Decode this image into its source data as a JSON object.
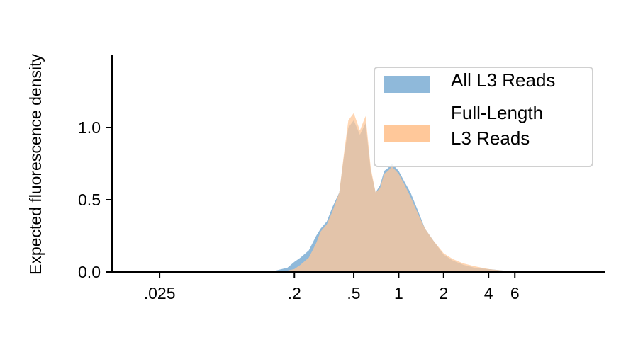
{
  "chart_data": {
    "type": "area",
    "title": "",
    "xlabel": "",
    "ylabel": "Expected fluorescence density",
    "x_scale": "log",
    "xlim": [
      0.012,
      24
    ],
    "ylim": [
      0,
      1.5
    ],
    "x_ticks": [
      {
        "value": 0.025,
        "label": ".025"
      },
      {
        "value": 0.2,
        "label": ".2"
      },
      {
        "value": 0.5,
        "label": ".5"
      },
      {
        "value": 1,
        "label": "1"
      },
      {
        "value": 2,
        "label": "2"
      },
      {
        "value": 4,
        "label": "4"
      },
      {
        "value": 6,
        "label": "6"
      }
    ],
    "y_ticks": [
      {
        "value": 0.0,
        "label": "0.0"
      },
      {
        "value": 0.5,
        "label": "0.5"
      },
      {
        "value": 1.0,
        "label": "1.0"
      }
    ],
    "grid": false,
    "legend_position": "top-right",
    "series": [
      {
        "name": "All L3 Reads",
        "color": "#8fb9da",
        "x": [
          0.12,
          0.15,
          0.18,
          0.2,
          0.22,
          0.25,
          0.28,
          0.3,
          0.33,
          0.36,
          0.4,
          0.43,
          0.46,
          0.5,
          0.55,
          0.6,
          0.65,
          0.7,
          0.75,
          0.8,
          0.85,
          0.9,
          1.0,
          1.1,
          1.2,
          1.35,
          1.5,
          1.7,
          2.0,
          2.3,
          2.7,
          3.2,
          4.0,
          5.0,
          6.0
        ],
        "values": [
          0.0,
          0.01,
          0.03,
          0.07,
          0.1,
          0.15,
          0.25,
          0.3,
          0.35,
          0.45,
          0.55,
          0.8,
          1.0,
          1.05,
          0.95,
          1.03,
          0.7,
          0.55,
          0.6,
          0.7,
          0.72,
          0.75,
          0.7,
          0.62,
          0.55,
          0.42,
          0.3,
          0.22,
          0.12,
          0.08,
          0.05,
          0.03,
          0.02,
          0.01,
          0.0
        ]
      },
      {
        "name": "Full-Length\nL3 Reads",
        "color": "#ffc89a",
        "x": [
          0.12,
          0.15,
          0.18,
          0.2,
          0.22,
          0.25,
          0.28,
          0.3,
          0.33,
          0.36,
          0.4,
          0.43,
          0.46,
          0.5,
          0.55,
          0.6,
          0.65,
          0.7,
          0.75,
          0.8,
          0.85,
          0.9,
          1.0,
          1.1,
          1.2,
          1.35,
          1.5,
          1.7,
          2.0,
          2.3,
          2.7,
          3.2,
          4.0,
          5.0,
          6.0
        ],
        "values": [
          0.0,
          0.0,
          0.01,
          0.02,
          0.05,
          0.1,
          0.2,
          0.28,
          0.33,
          0.42,
          0.55,
          0.82,
          1.05,
          1.1,
          0.98,
          1.08,
          0.72,
          0.55,
          0.58,
          0.68,
          0.7,
          0.73,
          0.68,
          0.6,
          0.52,
          0.4,
          0.3,
          0.22,
          0.13,
          0.09,
          0.06,
          0.04,
          0.02,
          0.01,
          0.0
        ]
      }
    ]
  }
}
